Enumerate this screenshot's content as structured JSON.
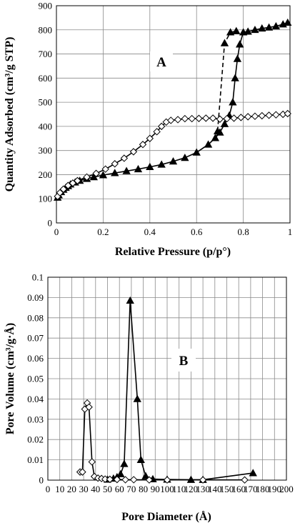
{
  "chart_data": [
    {
      "type": "line",
      "panel_label": "A",
      "xlabel": "Relative Pressure (p/p°)",
      "ylabel": "Quantity Adsorbed (cm³/g STP)",
      "xlim": [
        0,
        1
      ],
      "ylim": [
        0,
        900
      ],
      "xticks": [
        "0",
        "0.2",
        "0.4",
        "0.6",
        "0.8",
        "1"
      ],
      "yticks": [
        "0",
        "100",
        "200",
        "300",
        "400",
        "500",
        "600",
        "700",
        "800",
        "900"
      ],
      "grid": true,
      "series": [
        {
          "marker": "triangle",
          "fill": "#000000",
          "line_style": "solid",
          "points": [
            [
              0.005,
              105
            ],
            [
              0.01,
              115
            ],
            [
              0.02,
              128
            ],
            [
              0.03,
              138
            ],
            [
              0.04,
              146
            ],
            [
              0.05,
              153
            ],
            [
              0.06,
              160
            ],
            [
              0.08,
              168
            ],
            [
              0.1,
              175
            ],
            [
              0.13,
              183
            ],
            [
              0.16,
              190
            ],
            [
              0.2,
              198
            ],
            [
              0.25,
              207
            ],
            [
              0.3,
              215
            ],
            [
              0.35,
              223
            ],
            [
              0.4,
              232
            ],
            [
              0.45,
              242
            ],
            [
              0.5,
              255
            ],
            [
              0.55,
              270
            ],
            [
              0.6,
              292
            ],
            [
              0.65,
              325
            ],
            [
              0.68,
              352
            ],
            [
              0.7,
              375
            ],
            [
              0.72,
              410
            ],
            [
              0.74,
              445
            ],
            [
              0.755,
              500
            ],
            [
              0.765,
              600
            ],
            [
              0.775,
              680
            ],
            [
              0.785,
              740
            ],
            [
              0.8,
              790
            ],
            [
              0.82,
              793
            ],
            [
              0.85,
              800
            ],
            [
              0.88,
              806
            ],
            [
              0.91,
              810
            ],
            [
              0.94,
              815
            ],
            [
              0.97,
              823
            ],
            [
              0.99,
              830
            ]
          ]
        },
        {
          "marker": "triangle",
          "fill": "#000000",
          "line_style": "dashed",
          "points": [
            [
              0.69,
              380
            ],
            [
              0.72,
              745
            ],
            [
              0.745,
              790
            ],
            [
              0.77,
              795
            ]
          ]
        },
        {
          "marker": "diamond",
          "fill": "#ffffff",
          "line_style": "solid",
          "points": [
            [
              0.005,
              110
            ],
            [
              0.015,
              125
            ],
            [
              0.03,
              140
            ],
            [
              0.05,
              155
            ],
            [
              0.07,
              165
            ],
            [
              0.09,
              175
            ],
            [
              0.13,
              190
            ],
            [
              0.17,
              205
            ],
            [
              0.21,
              223
            ],
            [
              0.25,
              245
            ],
            [
              0.29,
              268
            ],
            [
              0.33,
              295
            ],
            [
              0.37,
              325
            ],
            [
              0.4,
              350
            ],
            [
              0.43,
              378
            ],
            [
              0.45,
              400
            ],
            [
              0.47,
              418
            ],
            [
              0.49,
              425
            ],
            [
              0.52,
              428
            ],
            [
              0.55,
              432
            ],
            [
              0.58,
              432
            ],
            [
              0.61,
              433
            ],
            [
              0.64,
              434
            ],
            [
              0.67,
              434
            ],
            [
              0.7,
              430
            ],
            [
              0.73,
              432
            ],
            [
              0.76,
              434
            ],
            [
              0.79,
              437
            ],
            [
              0.82,
              440
            ],
            [
              0.85,
              442
            ],
            [
              0.88,
              444
            ],
            [
              0.91,
              446
            ],
            [
              0.94,
              448
            ],
            [
              0.97,
              450
            ],
            [
              0.99,
              453
            ]
          ]
        }
      ]
    },
    {
      "type": "line",
      "panel_label": "B",
      "xlabel": "Pore Diameter (Å)",
      "ylabel": "Pore Volume (cm³/g·Å)",
      "xlim": [
        0,
        200
      ],
      "ylim": [
        0,
        0.1
      ],
      "xticks": [
        "0",
        "10",
        "20",
        "30",
        "40",
        "50",
        "60",
        "70",
        "80",
        "90",
        "100",
        "110",
        "120",
        "130",
        "140",
        "150",
        "160",
        "170",
        "180",
        "190",
        "200"
      ],
      "yticks": [
        "0",
        "0.01",
        "0.02",
        "0.03",
        "0.04",
        "0.05",
        "0.06",
        "0.07",
        "0.08",
        "0.09",
        "0.1"
      ],
      "grid": true,
      "series": [
        {
          "marker": "triangle",
          "fill": "#000000",
          "line_style": "solid",
          "points": [
            [
              50,
              0.0003
            ],
            [
              55,
              0.0008
            ],
            [
              58,
              0.0015
            ],
            [
              61,
              0.003
            ],
            [
              64,
              0.008
            ],
            [
              69,
              0.0885
            ],
            [
              75,
              0.04
            ],
            [
              78,
              0.01
            ],
            [
              82,
              0.002
            ],
            [
              88,
              0.0005
            ],
            [
              100,
              0.0003
            ],
            [
              120,
              0.0002
            ],
            [
              130,
              0.0002
            ],
            [
              172,
              0.0035
            ]
          ]
        },
        {
          "marker": "diamond",
          "fill": "#ffffff",
          "line_style": "solid",
          "points": [
            [
              27,
              0.004
            ],
            [
              29,
              0.004
            ],
            [
              31,
              0.035
            ],
            [
              33,
              0.038
            ],
            [
              34.5,
              0.036
            ],
            [
              37,
              0.009
            ],
            [
              39,
              0.0018
            ],
            [
              42,
              0.001
            ],
            [
              45,
              0.0008
            ],
            [
              48,
              0.0005
            ],
            [
              52,
              0.0004
            ],
            [
              58,
              0.0003
            ],
            [
              65,
              0.0002
            ],
            [
              72,
              0.0002
            ],
            [
              85,
              0.0001
            ],
            [
              100,
              0.0001
            ],
            [
              130,
              0.0001
            ],
            [
              165,
              0.0001
            ]
          ]
        }
      ]
    }
  ]
}
